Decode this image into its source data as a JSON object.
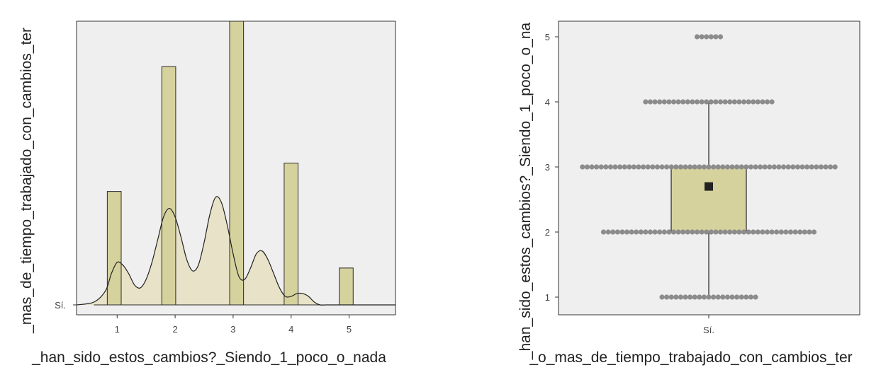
{
  "chart_data": [
    {
      "type": "bar",
      "subtype": "histogram-with-density",
      "xlabel": "_han_sido_estos_cambios?_Siendo_1_poco_o_nada",
      "ylabel": "_mas_de_tiempo_trabajado_con_cambios_ter",
      "y_category_label": "Sí.",
      "x_ticks": [
        1,
        2,
        3,
        4,
        5
      ],
      "xlim": [
        0.3,
        5.8
      ],
      "ylim": [
        0,
        100
      ],
      "bins": [
        {
          "x0": 0.83,
          "x1": 1.07,
          "value": 40
        },
        {
          "x0": 1.77,
          "x1": 2.01,
          "value": 84
        },
        {
          "x0": 2.94,
          "x1": 3.18,
          "value": 100
        },
        {
          "x0": 3.88,
          "x1": 4.12,
          "value": 50
        },
        {
          "x0": 4.83,
          "x1": 5.07,
          "value": 13
        }
      ],
      "density": {
        "x": [
          0.3,
          0.6,
          0.8,
          0.9,
          1.0,
          1.1,
          1.2,
          1.3,
          1.4,
          1.5,
          1.6,
          1.7,
          1.8,
          1.9,
          2.0,
          2.1,
          2.2,
          2.3,
          2.4,
          2.5,
          2.6,
          2.7,
          2.8,
          2.9,
          3.0,
          3.1,
          3.2,
          3.3,
          3.4,
          3.5,
          3.6,
          3.7,
          3.8,
          3.9,
          4.0,
          4.1,
          4.2,
          4.3,
          4.4,
          4.5,
          4.6,
          4.7,
          4.8,
          4.9,
          5.0,
          5.1,
          5.2,
          5.4,
          5.6,
          5.8
        ],
        "y": [
          0,
          1,
          5,
          11,
          15,
          14,
          11,
          7,
          6,
          9,
          15,
          23,
          31,
          34,
          31,
          24,
          16,
          12,
          14,
          22,
          32,
          38,
          36,
          28,
          18,
          10,
          9,
          13,
          18,
          19,
          16,
          11,
          6,
          3,
          3,
          4,
          4,
          3,
          1,
          0,
          0,
          0,
          0,
          0,
          0,
          0,
          0,
          0,
          0,
          0
        ],
        "note": "placeholder"
      },
      "legend": "none",
      "grid": false
    },
    {
      "type": "box",
      "subtype": "box-with-dotplot",
      "xlabel": "_o_mas_de_tiempo_trabajado_con_cambios_ter",
      "ylabel": "_han_sido_estos_cambios?_Siendo_1_poco_o_na",
      "categories": [
        "Sí."
      ],
      "y_ticks": [
        1,
        2,
        3,
        4,
        5
      ],
      "ylim": [
        0.7,
        5.25
      ],
      "box": {
        "q1": 2,
        "median": 3,
        "q3": 3,
        "whisker_low": 1,
        "whisker_high": 4,
        "mean": 2.7
      },
      "dots": [
        {
          "y": 5,
          "count": 6
        },
        {
          "y": 4,
          "count": 28
        },
        {
          "y": 3,
          "count": 55
        },
        {
          "y": 2,
          "count": 46
        },
        {
          "y": 1,
          "count": 21
        }
      ],
      "legend": "none",
      "grid": false
    }
  ],
  "colors": {
    "panel_bg": "#efefef",
    "bar_fill": "#d6d29e",
    "bar_stroke": "#2a2a2a",
    "density_fill": "#e8e2c8",
    "density_line": "#222222",
    "box_fill": "#d6d29e",
    "dot_color": "#8c8c8c",
    "mean_marker": "#222222"
  }
}
